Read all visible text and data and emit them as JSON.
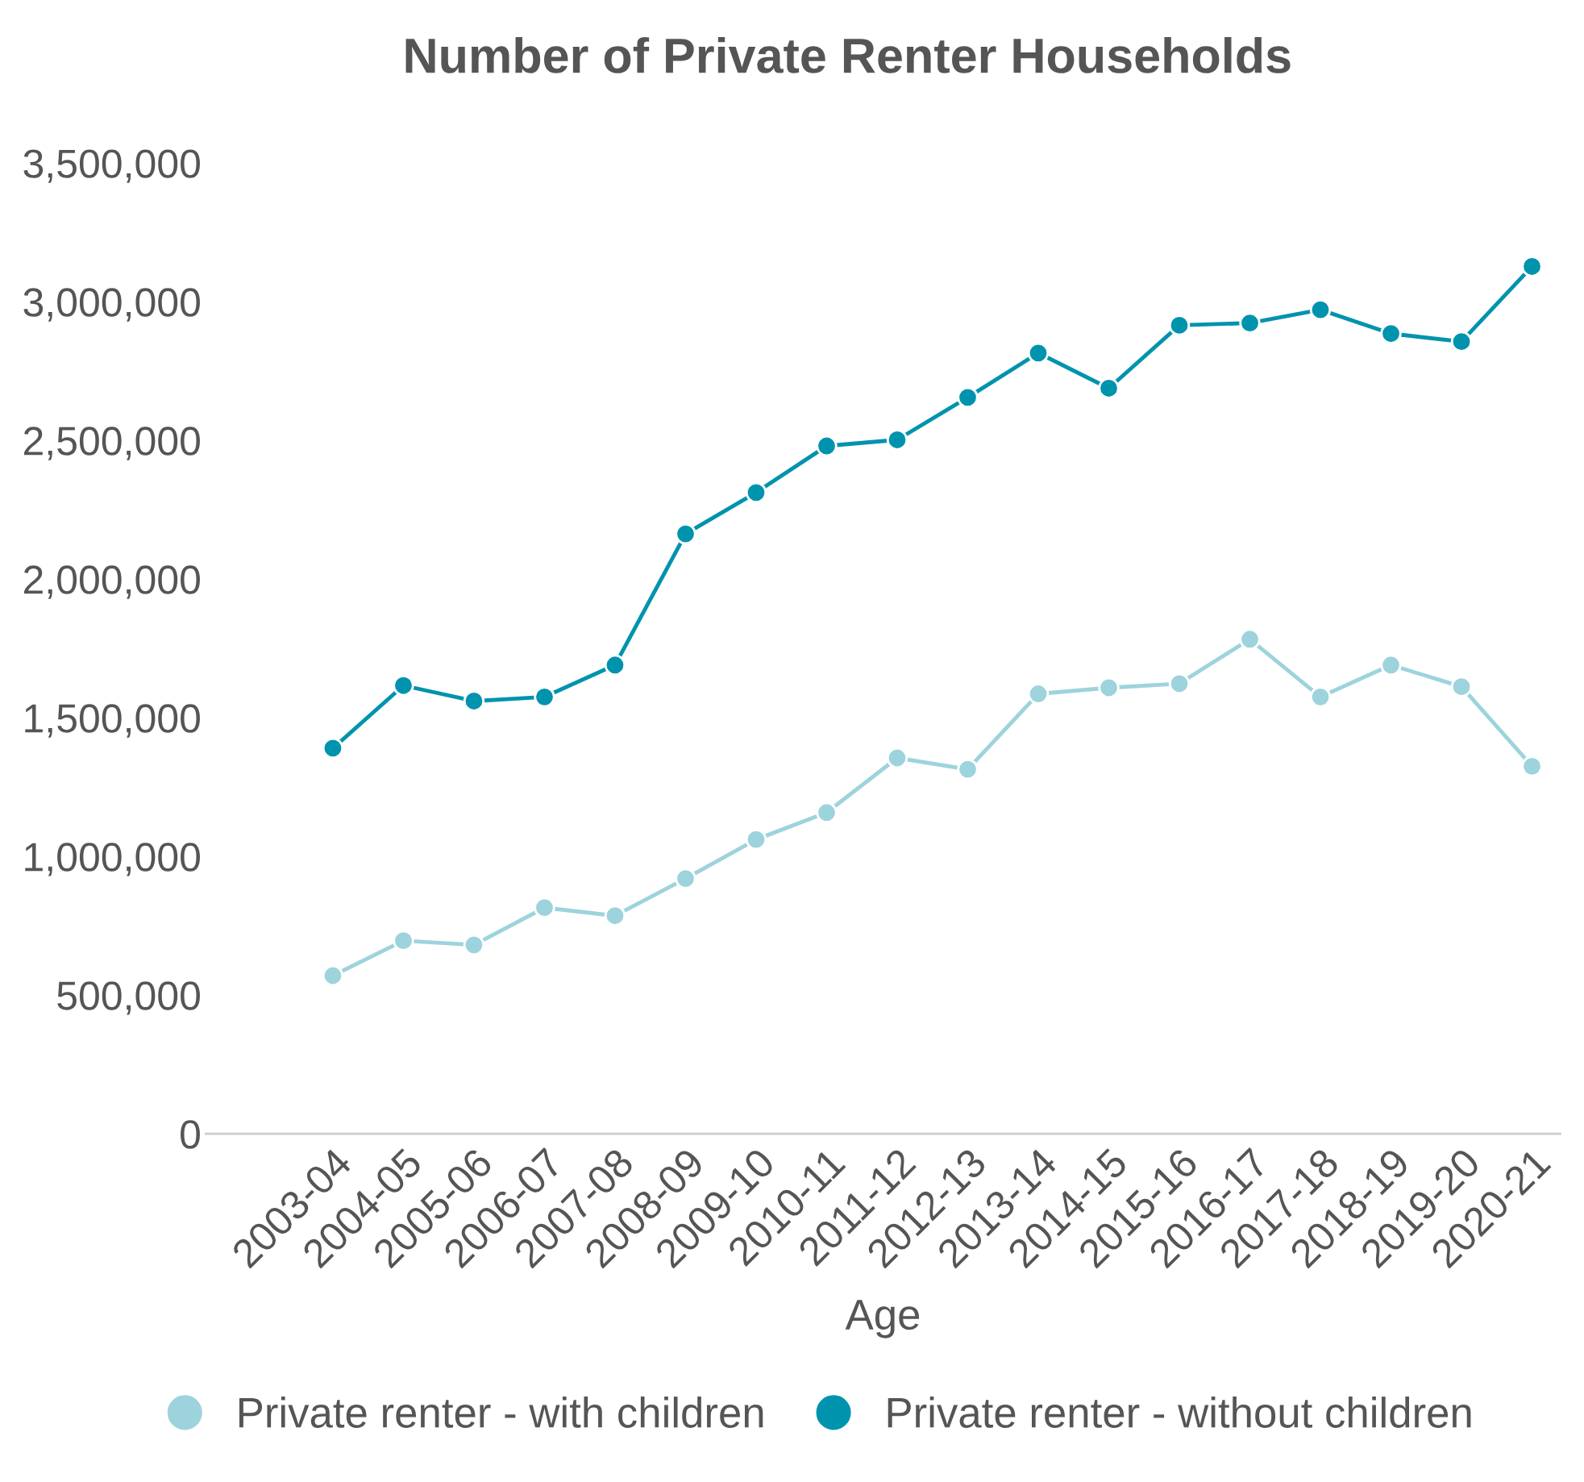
{
  "chart_data": {
    "type": "line",
    "title": "Number of Private Renter Households",
    "xlabel": "Age",
    "categories": [
      "2003-04",
      "2004-05",
      "2005-06",
      "2006-07",
      "2007-08",
      "2008-09",
      "2009-10",
      "2010-11",
      "2011-12",
      "2012-13",
      "2013-14",
      "2014-15",
      "2015-16",
      "2016-17",
      "2017-18",
      "2018-19",
      "2019-20",
      "2020-21"
    ],
    "series": [
      {
        "name": "Private renter - with children",
        "color": "#9dd3dc",
        "values": [
          570000,
          696000,
          681000,
          815000,
          786000,
          920000,
          1061000,
          1158000,
          1355000,
          1314000,
          1586000,
          1608000,
          1623000,
          1783000,
          1575000,
          1690000,
          1612000,
          1325000
        ]
      },
      {
        "name": "Private renter - without children",
        "color": "#0093ae",
        "values": [
          1390000,
          1616000,
          1560000,
          1575000,
          1690000,
          2163000,
          2312000,
          2480000,
          2502000,
          2655000,
          2815000,
          2688000,
          2915000,
          2923000,
          2971000,
          2885000,
          2856000,
          3127000
        ]
      }
    ],
    "ylim": [
      0,
      3500000
    ],
    "yticks": [
      {
        "value": 0,
        "label": "0"
      },
      {
        "value": 500000,
        "label": "500,000"
      },
      {
        "value": 1000000,
        "label": "1,000,000"
      },
      {
        "value": 1500000,
        "label": "1,500,000"
      },
      {
        "value": 2000000,
        "label": "2,000,000"
      },
      {
        "value": 2500000,
        "label": "2,500,000"
      },
      {
        "value": 3000000,
        "label": "3,000,000"
      },
      {
        "value": 3500000,
        "label": "3,500,000"
      }
    ],
    "grid": false,
    "legend": "bottom",
    "marker": "circle",
    "line_style": "solid"
  }
}
